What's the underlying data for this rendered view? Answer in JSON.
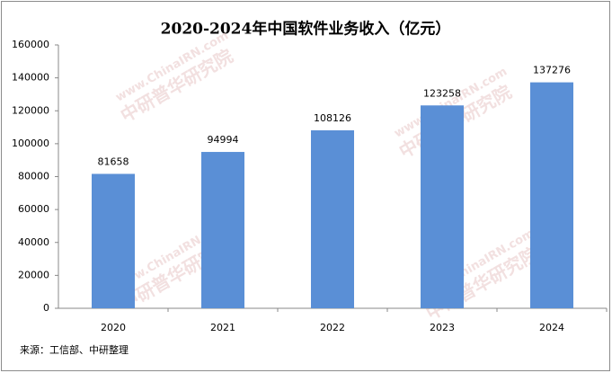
{
  "chart_data": {
    "type": "bar",
    "title": "2020-2024年中国软件业务收入（亿元）",
    "categories": [
      "2020",
      "2021",
      "2022",
      "2023",
      "2024"
    ],
    "values": [
      81658,
      94994,
      108126,
      123258,
      137276
    ],
    "color": "#5a8fd6",
    "ylim": [
      0,
      160000
    ],
    "yticks": [
      0,
      20000,
      40000,
      60000,
      80000,
      100000,
      120000,
      140000,
      160000
    ],
    "grid": false,
    "source": "来源：工信部、中研整理",
    "watermark": [
      "www.ChinaIRN.com",
      "中研普华研究院"
    ]
  }
}
